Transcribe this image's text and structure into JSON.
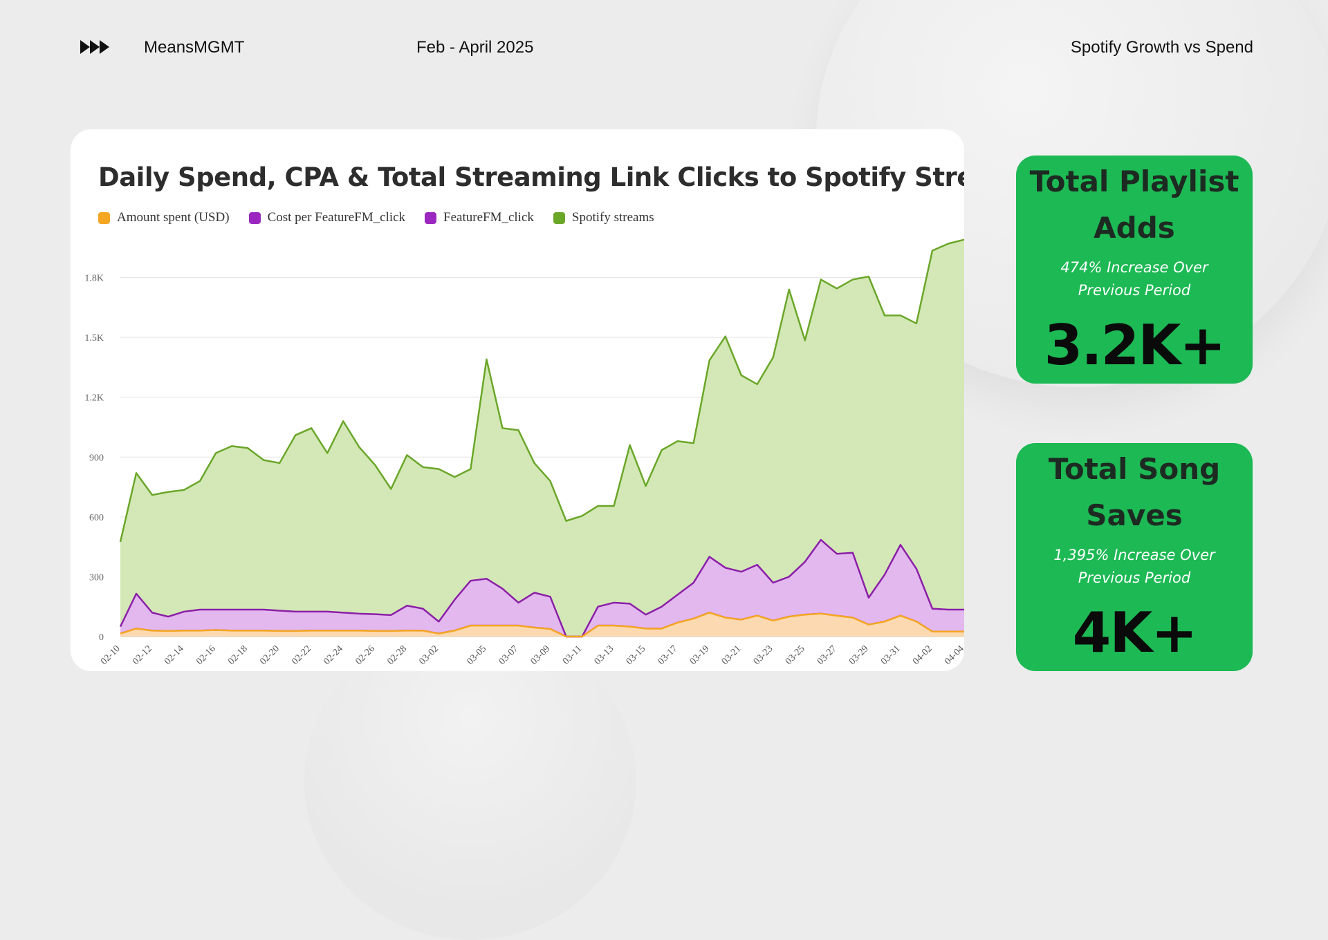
{
  "header": {
    "brand": "MeansMGMT",
    "period": "Feb - April 2025",
    "topic": "Spotify Growth vs Spend"
  },
  "chart_data": {
    "type": "area",
    "title": "Daily Spend, CPA & Total Streaming Link Clicks to Spotify Streams",
    "xlabel": "",
    "ylabel": "",
    "ylim": [
      0,
      2100
    ],
    "yticks": [
      0,
      300,
      600,
      900,
      1200,
      1500,
      1800
    ],
    "ytick_labels": [
      "0",
      "300",
      "600",
      "900",
      "1.2K",
      "1.5K",
      "1.8K"
    ],
    "grid": true,
    "legend_position": "top-left",
    "x": [
      "02-10",
      "02-11",
      "02-12",
      "02-13",
      "02-14",
      "02-15",
      "02-16",
      "02-17",
      "02-18",
      "02-19",
      "02-20",
      "02-21",
      "02-22",
      "02-23",
      "02-24",
      "02-25",
      "02-26",
      "02-27",
      "02-28",
      "03-01",
      "03-02",
      "03-03",
      "03-04",
      "03-05",
      "03-06",
      "03-07",
      "03-08",
      "03-09",
      "03-10",
      "03-11",
      "03-12",
      "03-13",
      "03-14",
      "03-15",
      "03-16",
      "03-17",
      "03-18",
      "03-19",
      "03-20",
      "03-21",
      "03-22",
      "03-23",
      "03-24",
      "03-25",
      "03-26",
      "03-27",
      "03-28",
      "03-29",
      "03-30",
      "03-31",
      "04-01",
      "04-02",
      "04-03",
      "04-04"
    ],
    "xtick_labels": [
      "02-10",
      "02-12",
      "02-14",
      "02-16",
      "02-18",
      "02-20",
      "02-22",
      "02-24",
      "02-26",
      "02-28",
      "03-02",
      "03-05",
      "03-07",
      "03-09",
      "03-11",
      "03-13",
      "03-15",
      "03-17",
      "03-19",
      "03-21",
      "03-23",
      "03-25",
      "03-27",
      "03-29",
      "03-31",
      "04-02",
      "04-04"
    ],
    "series": [
      {
        "name": "Spotify streams",
        "color": "#6aa628",
        "fill": "#d3e8b6",
        "values": [
          475,
          820,
          710,
          725,
          735,
          780,
          920,
          955,
          945,
          885,
          870,
          1010,
          1045,
          920,
          1080,
          950,
          860,
          740,
          910,
          850,
          840,
          800,
          840,
          1390,
          1045,
          1035,
          870,
          780,
          580,
          605,
          655,
          655,
          960,
          755,
          935,
          980,
          970,
          1385,
          1505,
          1310,
          1265,
          1400,
          1740,
          1485,
          1790,
          1745,
          1790,
          1805,
          1610,
          1610,
          1570,
          1935,
          1970,
          1990
        ]
      },
      {
        "name": "FeatureFM_click",
        "color": "#8b1fa8",
        "fill": "#e3b8ee",
        "values": [
          50,
          215,
          120,
          100,
          125,
          135,
          135,
          135,
          135,
          135,
          130,
          125,
          125,
          125,
          120,
          115,
          112,
          108,
          155,
          140,
          75,
          185,
          280,
          290,
          240,
          170,
          220,
          200,
          0,
          0,
          150,
          170,
          165,
          110,
          150,
          210,
          270,
          400,
          345,
          325,
          360,
          270,
          300,
          375,
          485,
          415,
          420,
          195,
          310,
          460,
          340,
          140,
          135,
          135
        ]
      },
      {
        "name": "Cost per FeatureFM_click",
        "color": "#8b1fa8",
        "fill": "none",
        "values": [
          15,
          40,
          30,
          28,
          30,
          30,
          33,
          30,
          30,
          30,
          28,
          28,
          30,
          30,
          30,
          30,
          28,
          28,
          30,
          30,
          15,
          30,
          55,
          55,
          55,
          55,
          45,
          38,
          0,
          0,
          55,
          55,
          50,
          40,
          40,
          70,
          90,
          120,
          95,
          85,
          105,
          80,
          100,
          110,
          115,
          105,
          95,
          60,
          75,
          105,
          75,
          25,
          25,
          25
        ]
      },
      {
        "name": "Amount spent (USD)",
        "color": "#f5a623",
        "fill": "#fcd9b0",
        "values": [
          15,
          40,
          30,
          28,
          30,
          30,
          33,
          30,
          30,
          30,
          28,
          28,
          30,
          30,
          30,
          30,
          28,
          28,
          30,
          30,
          15,
          30,
          55,
          55,
          55,
          55,
          45,
          38,
          0,
          0,
          55,
          55,
          50,
          40,
          40,
          70,
          90,
          120,
          95,
          85,
          105,
          80,
          100,
          110,
          115,
          105,
          95,
          60,
          75,
          105,
          75,
          25,
          25,
          25
        ]
      }
    ],
    "legend": [
      {
        "label": "Amount spent (USD)",
        "color": "#f5a623"
      },
      {
        "label": "Cost per FeatureFM_click",
        "color": "#9b27c0"
      },
      {
        "label": "FeatureFM_click",
        "color": "#9b27c0"
      },
      {
        "label": "Spotify streams",
        "color": "#6aa628"
      }
    ]
  },
  "stats": [
    {
      "title_line1": "Total Playlist",
      "title_line2": "Adds",
      "sub_line1": "474% Increase Over",
      "sub_line2": "Previous Period",
      "value": "3.2K+"
    },
    {
      "title_line1": "Total Song",
      "title_line2": "Saves",
      "sub_line1": "1,395% Increase Over",
      "sub_line2": "Previous Period",
      "value": "4K+"
    }
  ],
  "colors": {
    "accent_green": "#1db954",
    "background": "#ececec"
  }
}
